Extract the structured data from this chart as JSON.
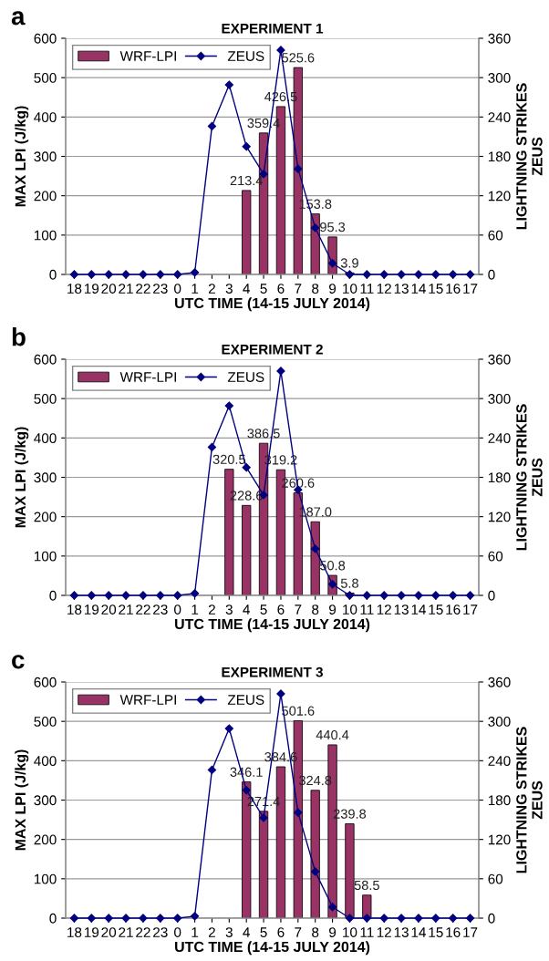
{
  "chart_data": [
    {
      "type": "bar",
      "title": "EXPERIMENT 1",
      "xlabel": "UTC TIME (14-15 JULY 2014)",
      "ylabel": "MAX LPI (J/kg)",
      "y2label": "LIGHTNING STRIKES\nZEUS",
      "annotations": [
        "a"
      ],
      "categories": [
        "18",
        "19",
        "20",
        "21",
        "22",
        "23",
        "0",
        "1",
        "2",
        "3",
        "4",
        "5",
        "6",
        "7",
        "8",
        "9",
        "10",
        "11",
        "12",
        "13",
        "14",
        "15",
        "16",
        "17"
      ],
      "series": [
        {
          "name": "WRF-LPI",
          "color": "#993366",
          "values": [
            null,
            null,
            null,
            null,
            null,
            null,
            null,
            null,
            null,
            null,
            213.4,
            359.4,
            426.5,
            525.6,
            153.8,
            95.3,
            3.9,
            null,
            null,
            null,
            null,
            null,
            null,
            null
          ],
          "value_labels": [
            null,
            null,
            null,
            null,
            null,
            null,
            null,
            null,
            null,
            null,
            "213.4",
            "359.4",
            "426.5",
            "525.6",
            "153.8",
            "95.3",
            "3.9",
            null,
            null,
            null,
            null,
            null,
            null,
            null
          ]
        },
        {
          "name": "ZEUS",
          "type": "line",
          "axis": "y2",
          "color": "#000080",
          "marker": "diamond",
          "values": [
            0,
            0,
            0,
            0,
            0,
            0,
            0,
            3,
            226,
            289,
            195,
            153,
            342,
            161,
            71,
            17,
            0,
            0,
            0,
            0,
            0,
            0,
            0,
            0
          ]
        }
      ],
      "ylim": [
        0,
        600
      ],
      "yticks": [
        0,
        100,
        200,
        300,
        400,
        500,
        600
      ],
      "y2lim": [
        0,
        360
      ],
      "y2ticks": [
        0,
        60,
        120,
        180,
        240,
        300,
        360
      ],
      "grid": "y",
      "legend": "top left"
    },
    {
      "type": "bar",
      "title": "EXPERIMENT 2",
      "xlabel": "UTC TIME (14-15 JULY 2014)",
      "ylabel": "MAX LPI (J/kg)",
      "y2label": "LIGHTNING STRIKES\nZEUS",
      "annotations": [
        "b"
      ],
      "categories": [
        "18",
        "19",
        "20",
        "21",
        "22",
        "23",
        "0",
        "1",
        "2",
        "3",
        "4",
        "5",
        "6",
        "7",
        "8",
        "9",
        "10",
        "11",
        "12",
        "13",
        "14",
        "15",
        "16",
        "17"
      ],
      "series": [
        {
          "name": "WRF-LPI",
          "color": "#993366",
          "values": [
            null,
            null,
            null,
            null,
            null,
            null,
            null,
            null,
            null,
            320.5,
            228.6,
            386.5,
            319.2,
            260.6,
            187.0,
            50.8,
            5.8,
            null,
            null,
            null,
            null,
            null,
            null,
            null
          ],
          "value_labels": [
            null,
            null,
            null,
            null,
            null,
            null,
            null,
            null,
            null,
            "320.5",
            "228.6",
            "386.5",
            "319.2",
            "260.6",
            "187.0",
            "50.8",
            "5.8",
            null,
            null,
            null,
            null,
            null,
            null,
            null
          ]
        },
        {
          "name": "ZEUS",
          "type": "line",
          "axis": "y2",
          "color": "#000080",
          "marker": "diamond",
          "values": [
            0,
            0,
            0,
            0,
            0,
            0,
            0,
            3,
            226,
            289,
            195,
            153,
            342,
            161,
            71,
            17,
            0,
            0,
            0,
            0,
            0,
            0,
            0,
            0
          ]
        }
      ],
      "ylim": [
        0,
        600
      ],
      "yticks": [
        0,
        100,
        200,
        300,
        400,
        500,
        600
      ],
      "y2lim": [
        0,
        360
      ],
      "y2ticks": [
        0,
        60,
        120,
        180,
        240,
        300,
        360
      ],
      "grid": "y",
      "legend": "top left"
    },
    {
      "type": "bar",
      "title": "EXPERIMENT 3",
      "xlabel": "UTC TIME (14-15 JULY 2014)",
      "ylabel": "MAX LPI (J/kg)",
      "y2label": "LIGHTNING STRIKES\nZEUS",
      "annotations": [
        "c"
      ],
      "categories": [
        "18",
        "19",
        "20",
        "21",
        "22",
        "23",
        "0",
        "1",
        "2",
        "3",
        "4",
        "5",
        "6",
        "7",
        "8",
        "9",
        "10",
        "11",
        "12",
        "13",
        "14",
        "15",
        "16",
        "17"
      ],
      "series": [
        {
          "name": "WRF-LPI",
          "color": "#993366",
          "values": [
            null,
            null,
            null,
            null,
            null,
            null,
            null,
            null,
            null,
            null,
            346.1,
            271.4,
            384.6,
            501.6,
            324.8,
            440.4,
            239.8,
            58.5,
            null,
            null,
            null,
            null,
            null,
            null
          ],
          "value_labels": [
            null,
            null,
            null,
            null,
            null,
            null,
            null,
            null,
            null,
            null,
            "346.1",
            "271.4",
            "384.6",
            "501.6",
            "324.8",
            "440.4",
            "239.8",
            "58.5",
            null,
            null,
            null,
            null,
            null,
            null
          ]
        },
        {
          "name": "ZEUS",
          "type": "line",
          "axis": "y2",
          "color": "#000080",
          "marker": "diamond",
          "values": [
            0,
            0,
            0,
            0,
            0,
            0,
            0,
            3,
            226,
            289,
            195,
            153,
            342,
            161,
            71,
            17,
            0,
            0,
            0,
            0,
            0,
            0,
            0,
            0
          ]
        }
      ],
      "ylim": [
        0,
        600
      ],
      "yticks": [
        0,
        100,
        200,
        300,
        400,
        500,
        600
      ],
      "y2lim": [
        0,
        360
      ],
      "y2ticks": [
        0,
        60,
        120,
        180,
        240,
        300,
        360
      ],
      "grid": "y",
      "legend": "top left"
    }
  ]
}
